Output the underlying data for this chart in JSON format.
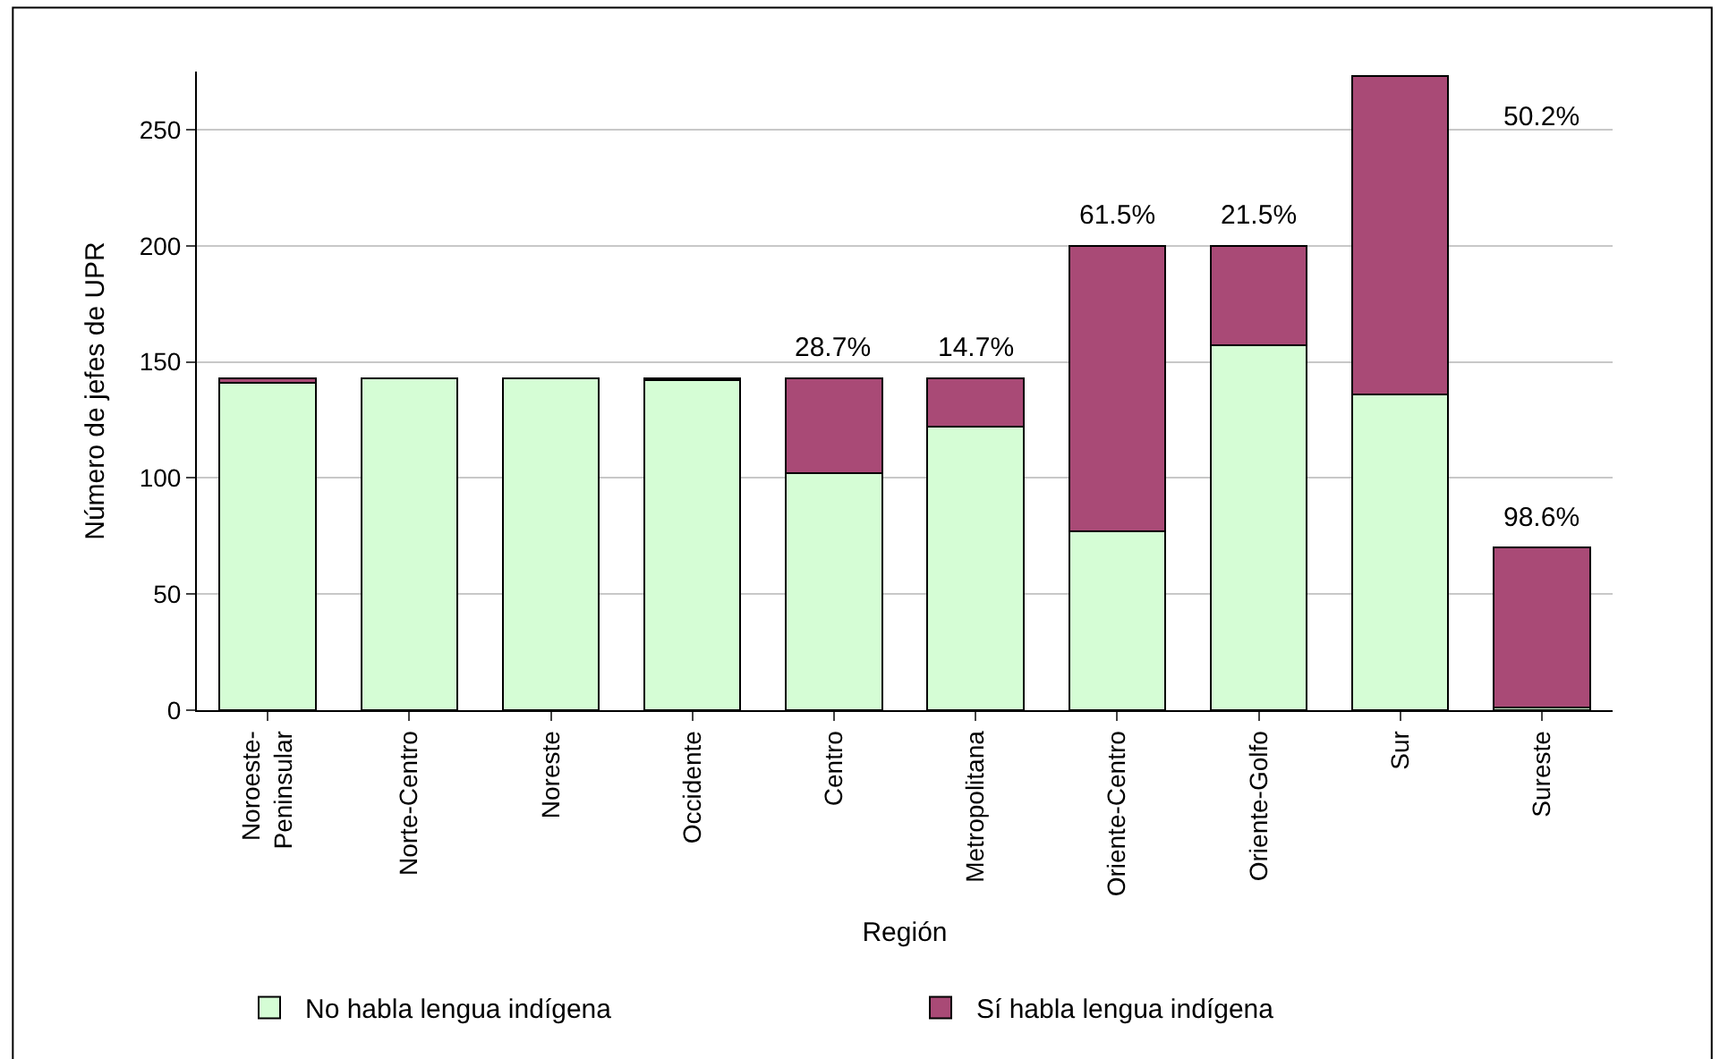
{
  "chart_data": {
    "type": "bar",
    "stacked": true,
    "xlabel": "Región",
    "ylabel": "Número de jefes de UPR",
    "categories": [
      "Noroeste-Peninsular",
      "Norte-Centro",
      "Noreste",
      "Occidente",
      "Centro",
      "Metropolitana",
      "Oriente-Centro",
      "Oriente-Golfo",
      "Sur",
      "Sureste"
    ],
    "series": [
      {
        "name": "No habla lengua indígena",
        "color": "#d5fdd5",
        "values": [
          141,
          143,
          143,
          142,
          102,
          122,
          77,
          157,
          136,
          1
        ]
      },
      {
        "name": "Sí habla lengua indígena",
        "color": "#a94a76",
        "values": [
          2,
          null,
          null,
          1,
          41,
          21,
          123,
          43,
          137,
          69
        ]
      }
    ],
    "ylim": [
      0,
      275
    ],
    "yticks": [
      0,
      50,
      100,
      150,
      200,
      250
    ],
    "grid": "y",
    "legend": "bottom",
    "annotations": [
      {
        "text": "28.7%",
        "x": "Centro",
        "y": 143
      },
      {
        "text": "14.7%",
        "x": "Metropolitana",
        "y": 143
      },
      {
        "text": "61.5%",
        "x": "Oriente-Centro",
        "y": 200
      },
      {
        "text": "21.5%",
        "x": "Oriente-Golfo",
        "y": 200
      },
      "50.2%",
      {
        "text": "98.6%",
        "x": "Sureste",
        "y": 70
      }
    ]
  }
}
